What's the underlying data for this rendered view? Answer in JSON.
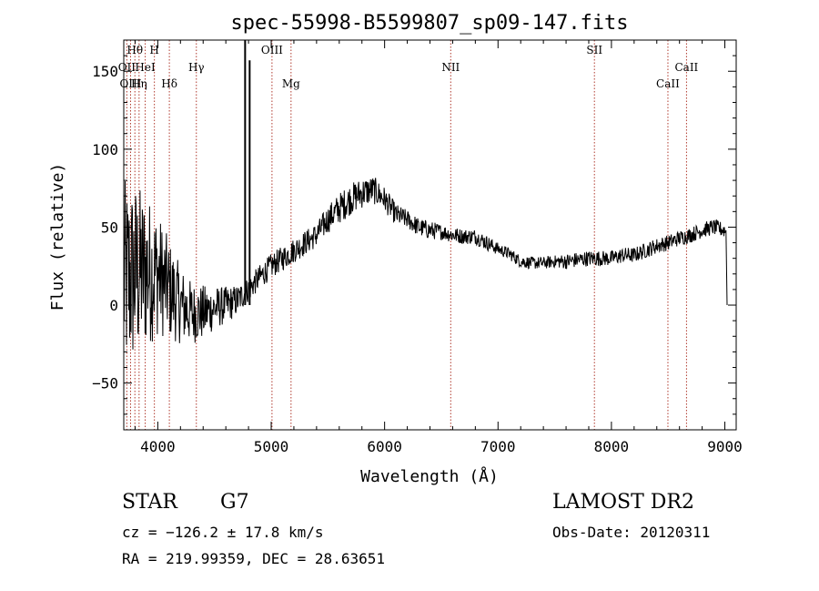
{
  "chart_data": {
    "type": "line",
    "title": "spec-55998-B5599807_sp09-147.fits",
    "xlabel": "Wavelength (Å)",
    "ylabel": "Flux (relative)",
    "xlim": [
      3700,
      9100
    ],
    "ylim": [
      -80,
      170
    ],
    "x_ticks": [
      4000,
      5000,
      6000,
      7000,
      8000,
      9000
    ],
    "y_ticks": [
      -50,
      0,
      50,
      100,
      150
    ],
    "grid": false,
    "lines": [
      {
        "name": "Hθ",
        "x": 3798,
        "row": 0
      },
      {
        "name": "H",
        "x": 3970,
        "row": 0
      },
      {
        "name": "OII",
        "x": 3727,
        "row": 1
      },
      {
        "name": "HeI",
        "x": 3889,
        "row": 1
      },
      {
        "name": "OIII",
        "x": 3760,
        "row": 2
      },
      {
        "name": "Hη",
        "x": 3835,
        "row": 2
      },
      {
        "name": "Hδ",
        "x": 4102,
        "row": 2
      },
      {
        "name": "Hγ",
        "x": 4340,
        "row": 1
      },
      {
        "name": "OIII",
        "x": 5007,
        "row": 0
      },
      {
        "name": "Mg",
        "x": 5175,
        "row": 2
      },
      {
        "name": "NII",
        "x": 6583,
        "row": 1
      },
      {
        "name": "SII",
        "x": 7850,
        "row": 0
      },
      {
        "name": "CaII",
        "x": 8498,
        "row": 2
      },
      {
        "name": "CaII",
        "x": 8662,
        "row": 1
      }
    ],
    "spectrum": {
      "x": [
        3700,
        3800,
        3900,
        4000,
        4100,
        4200,
        4300,
        4400,
        4500,
        4600,
        4700,
        4800,
        4900,
        5000,
        5100,
        5200,
        5300,
        5400,
        5500,
        5600,
        5700,
        5800,
        5900,
        6000,
        6100,
        6200,
        6300,
        6400,
        6500,
        6600,
        6700,
        6800,
        6900,
        7000,
        7100,
        7200,
        7300,
        7400,
        7500,
        7600,
        7700,
        7800,
        7900,
        8000,
        8100,
        8200,
        8300,
        8400,
        8500,
        8600,
        8700,
        8800,
        8900,
        9000,
        9020
      ],
      "y": [
        15,
        20,
        22,
        20,
        10,
        0,
        -5,
        -5,
        -2,
        0,
        3,
        10,
        18,
        25,
        30,
        35,
        40,
        45,
        55,
        62,
        68,
        72,
        74,
        68,
        58,
        55,
        50,
        48,
        47,
        45,
        44,
        44,
        40,
        36,
        33,
        28,
        27,
        27,
        28,
        28,
        29,
        30,
        30,
        30,
        32,
        32,
        35,
        38,
        40,
        43,
        45,
        48,
        50,
        48,
        0
      ],
      "noise_amplitude": [
        65,
        60,
        50,
        40,
        32,
        25,
        20,
        18,
        14,
        12,
        10,
        8,
        8,
        8,
        8,
        8,
        8,
        8,
        9,
        10,
        10,
        10,
        9,
        8,
        7,
        6,
        6,
        6,
        5,
        5,
        5,
        5,
        5,
        4,
        4,
        4,
        4,
        4,
        4,
        5,
        5,
        5,
        5,
        5,
        5,
        5,
        5,
        5,
        5,
        5,
        5,
        5,
        5,
        5,
        0
      ]
    },
    "spikes": [
      {
        "x": 4770,
        "y": 170
      },
      {
        "x": 4810,
        "y": 157
      }
    ]
  },
  "footer": {
    "object_class": "STAR",
    "subclass": "G7",
    "survey": "LAMOST DR2",
    "redshift": "cz = −126.2 ± 17.8 km/s",
    "obs_date": "Obs-Date: 20120311",
    "coords": "RA = 219.99359, DEC =  28.63651"
  },
  "colors": {
    "axis": "#000000",
    "spectrum": "#000000",
    "line_markers": "#b03a2e"
  }
}
